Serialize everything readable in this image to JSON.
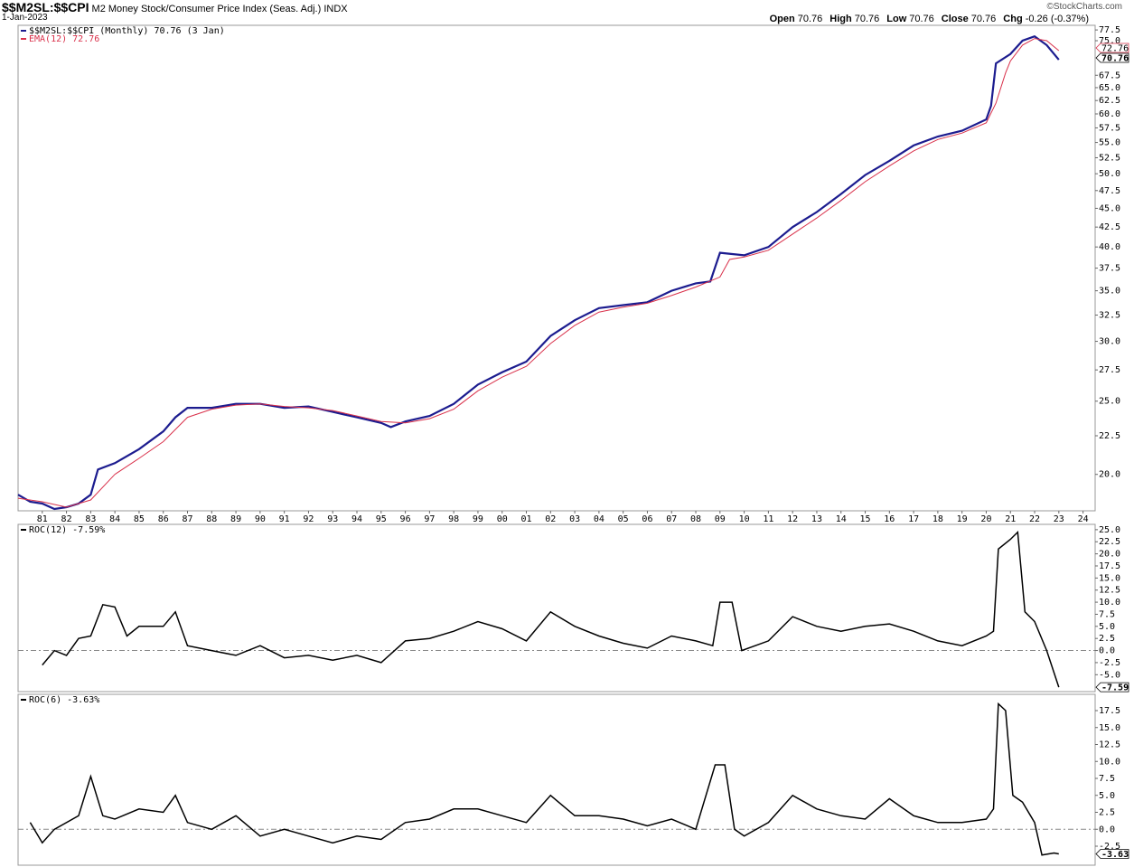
{
  "header": {
    "symbol": "$$M2SL:$$CPI",
    "description": "M2 Money Stock/Consumer Price Index (Seas. Adj.)",
    "exchange": "INDX",
    "date": "1-Jan-2023",
    "source": "©StockCharts.com",
    "quote": [
      {
        "label": "Open",
        "value": "70.76"
      },
      {
        "label": "High",
        "value": "70.76"
      },
      {
        "label": "Low",
        "value": "70.76"
      },
      {
        "label": "Close",
        "value": "70.76"
      },
      {
        "label": "Chg",
        "value": "-0.26 (-0.37%)"
      }
    ]
  },
  "chart_data": [
    {
      "type": "line",
      "log_scale": true,
      "xlim": [
        1980,
        2024.5
      ],
      "ylim": [
        17.9,
        78.6
      ],
      "xticks": [
        {
          "value": 1981,
          "label": "81"
        },
        {
          "value": 1982,
          "label": "82"
        },
        {
          "value": 1983,
          "label": "83"
        },
        {
          "value": 1984,
          "label": "84"
        },
        {
          "value": 1985,
          "label": "85"
        },
        {
          "value": 1986,
          "label": "86"
        },
        {
          "value": 1987,
          "label": "87"
        },
        {
          "value": 1988,
          "label": "88"
        },
        {
          "value": 1989,
          "label": "89"
        },
        {
          "value": 1990,
          "label": "90"
        },
        {
          "value": 1991,
          "label": "91"
        },
        {
          "value": 1992,
          "label": "92"
        },
        {
          "value": 1993,
          "label": "93"
        },
        {
          "value": 1994,
          "label": "94"
        },
        {
          "value": 1995,
          "label": "95"
        },
        {
          "value": 1996,
          "label": "96"
        },
        {
          "value": 1997,
          "label": "97"
        },
        {
          "value": 1998,
          "label": "98"
        },
        {
          "value": 1999,
          "label": "99"
        },
        {
          "value": 2000,
          "label": "00"
        },
        {
          "value": 2001,
          "label": "01"
        },
        {
          "value": 2002,
          "label": "02"
        },
        {
          "value": 2003,
          "label": "03"
        },
        {
          "value": 2004,
          "label": "04"
        },
        {
          "value": 2005,
          "label": "05"
        },
        {
          "value": 2006,
          "label": "06"
        },
        {
          "value": 2007,
          "label": "07"
        },
        {
          "value": 2008,
          "label": "08"
        },
        {
          "value": 2009,
          "label": "09"
        },
        {
          "value": 2010,
          "label": "10"
        },
        {
          "value": 2011,
          "label": "11"
        },
        {
          "value": 2012,
          "label": "12"
        },
        {
          "value": 2013,
          "label": "13"
        },
        {
          "value": 2014,
          "label": "14"
        },
        {
          "value": 2015,
          "label": "15"
        },
        {
          "value": 2016,
          "label": "16"
        },
        {
          "value": 2017,
          "label": "17"
        },
        {
          "value": 2018,
          "label": "18"
        },
        {
          "value": 2019,
          "label": "19"
        },
        {
          "value": 2020,
          "label": "20"
        },
        {
          "value": 2021,
          "label": "21"
        },
        {
          "value": 2022,
          "label": "22"
        },
        {
          "value": 2023,
          "label": "23"
        },
        {
          "value": 2024,
          "label": "24"
        }
      ],
      "yticks": [
        77.5,
        {
          "value": 75,
          "label": "75.0"
        },
        67.5,
        {
          "value": 65,
          "label": "65.0"
        },
        62.5,
        {
          "value": 60,
          "label": "60.0"
        },
        57.5,
        {
          "value": 55,
          "label": "55.0"
        },
        52.5,
        {
          "value": 50,
          "label": "50.0"
        },
        47.5,
        {
          "value": 45,
          "label": "45.0"
        },
        42.5,
        {
          "value": 40,
          "label": "40.0"
        },
        37.5,
        {
          "value": 35,
          "label": "35.0"
        },
        32.5,
        {
          "value": 30,
          "label": "30.0"
        },
        27.5,
        {
          "value": 25,
          "label": "25.0"
        },
        22.5,
        {
          "value": 20,
          "label": "20.0"
        }
      ],
      "series": [
        {
          "name": "$$M2SL:$$CPI (Monthly) 70.76 (3 Jan)",
          "color": "#1c1c8f",
          "x": [
            1980,
            1980.5,
            1981,
            1981.5,
            1982,
            1982.5,
            1983,
            1983.3,
            1984,
            1985,
            1986,
            1986.5,
            1987,
            1988,
            1989,
            1990,
            1991,
            1992,
            1993,
            1994,
            1995,
            1995.4,
            1996,
            1997,
            1998,
            1999,
            2000,
            2001,
            2002,
            2003,
            2004,
            2005,
            2006,
            2007,
            2008,
            2008.6,
            2009,
            2010,
            2011,
            2012,
            2013,
            2014,
            2015,
            2016,
            2017,
            2018,
            2019,
            2020,
            2020.2,
            2020.4,
            2021,
            2021.5,
            2022,
            2022.5,
            2023
          ],
          "values": [
            18.8,
            18.4,
            18.3,
            18.0,
            18.1,
            18.3,
            18.8,
            20.3,
            20.7,
            21.6,
            22.8,
            23.8,
            24.5,
            24.5,
            24.8,
            24.8,
            24.5,
            24.6,
            24.2,
            23.8,
            23.4,
            23.1,
            23.5,
            23.9,
            24.8,
            26.3,
            27.3,
            28.2,
            30.5,
            32.0,
            33.2,
            33.5,
            33.8,
            35.0,
            35.8,
            36.0,
            39.3,
            39.0,
            40.0,
            42.5,
            44.5,
            47.0,
            49.8,
            52.0,
            54.5,
            56.0,
            57.0,
            59.0,
            61.5,
            70.0,
            72.0,
            75.0,
            76.0,
            74.0,
            70.76
          ]
        },
        {
          "name": "EMA(12) 72.76",
          "color": "#d9304a",
          "x": [
            1980,
            1981,
            1982,
            1983,
            1984,
            1985,
            1986,
            1987,
            1988,
            1989,
            1990,
            1991,
            1992,
            1993,
            1994,
            1995,
            1996,
            1997,
            1998,
            1999,
            2000,
            2001,
            2002,
            2003,
            2004,
            2005,
            2006,
            2007,
            2008,
            2009,
            2009.4,
            2010,
            2011,
            2012,
            2013,
            2014,
            2015,
            2016,
            2017,
            2018,
            2019,
            2020,
            2020.4,
            2020.8,
            2021,
            2021.5,
            2022,
            2022.5,
            2023
          ],
          "values": [
            18.6,
            18.4,
            18.1,
            18.5,
            20.0,
            21.0,
            22.1,
            23.8,
            24.4,
            24.7,
            24.8,
            24.6,
            24.5,
            24.3,
            23.9,
            23.5,
            23.4,
            23.7,
            24.4,
            25.8,
            26.9,
            27.8,
            29.8,
            31.5,
            32.8,
            33.3,
            33.7,
            34.5,
            35.4,
            36.5,
            38.5,
            38.8,
            39.6,
            41.6,
            43.7,
            46.1,
            48.8,
            51.2,
            53.6,
            55.5,
            56.6,
            58.4,
            62.0,
            68.0,
            70.5,
            74.0,
            75.5,
            75.0,
            72.76
          ]
        }
      ]
    },
    {
      "type": "line",
      "xlim": [
        1980,
        2024.5
      ],
      "ylim": [
        -8.5,
        26.1
      ],
      "zero_line": true,
      "yticks": [
        {
          "value": 25,
          "label": "25.0"
        },
        22.5,
        {
          "value": 20,
          "label": "20.0"
        },
        17.5,
        {
          "value": 15,
          "label": "15.0"
        },
        12.5,
        {
          "value": 10,
          "label": "10.0"
        },
        7.5,
        {
          "value": 5,
          "label": "5.0"
        },
        2.5,
        {
          "value": 0,
          "label": "0.0"
        },
        -2.5,
        {
          "value": -5,
          "label": "-5.0"
        }
      ],
      "series": [
        {
          "name": "ROC(12) -7.59%",
          "color": "#000000",
          "x": [
            1981,
            1981.5,
            1982,
            1982.5,
            1983,
            1983.5,
            1984,
            1984.5,
            1985,
            1986,
            1986.5,
            1987,
            1988,
            1989,
            1990,
            1991,
            1992,
            1993,
            1994,
            1995,
            1996,
            1997,
            1998,
            1999,
            2000,
            2001,
            2002,
            2003,
            2004,
            2005,
            2006,
            2007,
            2008,
            2008.7,
            2009,
            2009.5,
            2009.9,
            2011,
            2012,
            2013,
            2014,
            2015,
            2016,
            2017,
            2018,
            2019,
            2020,
            2020.3,
            2020.5,
            2021,
            2021.3,
            2021.6,
            2022,
            2022.5,
            2023
          ],
          "values": [
            -3,
            0,
            -1,
            2.5,
            3,
            9.5,
            9,
            3,
            5,
            5,
            8,
            1,
            0,
            -1,
            1,
            -1.5,
            -1,
            -2,
            -1,
            -2.5,
            2,
            2.5,
            4,
            6,
            4.5,
            2,
            8,
            5,
            3,
            1.5,
            0.5,
            3,
            2,
            1,
            10,
            10,
            0,
            2,
            7,
            5,
            4,
            5,
            5.5,
            4,
            2,
            1,
            3,
            4,
            21,
            23,
            24.5,
            8,
            6,
            0,
            -7.59
          ]
        }
      ]
    },
    {
      "type": "line",
      "xlim": [
        1980,
        2024.5
      ],
      "ylim": [
        -5.3,
        19.9
      ],
      "zero_line": true,
      "yticks": [
        17.5,
        {
          "value": 15,
          "label": "15.0"
        },
        12.5,
        {
          "value": 10,
          "label": "10.0"
        },
        7.5,
        {
          "value": 5,
          "label": "5.0"
        },
        2.5,
        {
          "value": 0,
          "label": "0.0"
        },
        -2.5
      ],
      "series": [
        {
          "name": "ROC(6) -3.63%",
          "color": "#000000",
          "x": [
            1980.5,
            1981,
            1981.5,
            1982.5,
            1983,
            1983.5,
            1984,
            1985,
            1986,
            1986.5,
            1987,
            1988,
            1989,
            1990,
            1991,
            1992,
            1993,
            1994,
            1995,
            1996,
            1997,
            1998,
            1999,
            2000,
            2001,
            2002,
            2003,
            2004,
            2005,
            2006,
            2007,
            2008,
            2008.8,
            2009.2,
            2009.6,
            2010,
            2011,
            2012,
            2013,
            2014,
            2015,
            2016,
            2017,
            2018,
            2019,
            2020,
            2020.3,
            2020.5,
            2020.8,
            2021.1,
            2021.5,
            2022,
            2022.3,
            2022.8,
            2023
          ],
          "values": [
            1,
            -2,
            0,
            2,
            7.8,
            2,
            1.5,
            3,
            2.5,
            5,
            1,
            0,
            2,
            -1,
            0,
            -1,
            -2,
            -1,
            -1.5,
            1,
            1.5,
            3,
            3,
            2,
            1,
            5,
            2,
            2,
            1.5,
            0.5,
            1.5,
            0,
            9.5,
            9.5,
            0,
            -1,
            1,
            5,
            3,
            2,
            1.5,
            4.5,
            2,
            1,
            1,
            1.5,
            3,
            18.5,
            17.5,
            5,
            4,
            1,
            -3.8,
            -3.5,
            -3.63
          ]
        }
      ]
    }
  ]
}
